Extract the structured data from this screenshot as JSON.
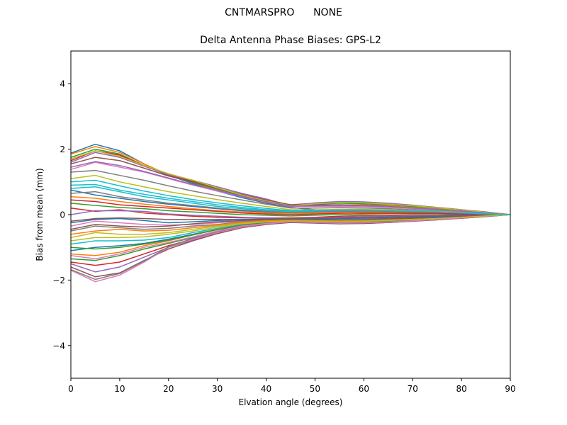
{
  "figure": {
    "suptitle": "CNTMARSPRO      NONE"
  },
  "chart_data": {
    "type": "line",
    "title": "Delta Antenna Phase Biases: GPS-L2",
    "xlabel": "Elvation angle (degrees)",
    "ylabel": "Bias from mean (mm)",
    "xlim": [
      0,
      90
    ],
    "ylim": [
      -5,
      5
    ],
    "xticks": [
      0,
      10,
      20,
      30,
      40,
      50,
      60,
      70,
      80,
      90
    ],
    "xtick_labels": [
      "0",
      "10",
      "20",
      "30",
      "40",
      "50",
      "60",
      "70",
      "80",
      "90"
    ],
    "yticks": [
      -4,
      -2,
      0,
      2,
      4
    ],
    "ytick_labels": [
      "−4",
      "−2",
      "0",
      "2",
      "4"
    ],
    "grid": false,
    "legend": "none",
    "colors": [
      "#1f77b4",
      "#ff7f0e",
      "#2ca02c",
      "#d62728",
      "#9467bd",
      "#8c564b",
      "#e377c2",
      "#7f7f7f",
      "#bcbd22",
      "#17becf"
    ],
    "x": [
      0,
      5,
      10,
      15,
      20,
      25,
      30,
      35,
      40,
      45,
      50,
      55,
      60,
      65,
      70,
      75,
      80,
      85,
      90
    ],
    "series": [
      {
        "values": [
          1.88,
          2.15,
          1.95,
          1.55,
          1.2,
          0.95,
          0.72,
          0.52,
          0.35,
          0.22,
          0.15,
          0.12,
          0.1,
          0.09,
          0.07,
          0.05,
          0.04,
          0.02,
          0.0
        ]
      },
      {
        "values": [
          1.85,
          2.08,
          1.9,
          1.55,
          1.22,
          0.98,
          0.75,
          0.55,
          0.38,
          0.25,
          0.28,
          0.3,
          0.3,
          0.27,
          0.22,
          0.17,
          0.12,
          0.06,
          0.0
        ]
      },
      {
        "values": [
          1.75,
          2.0,
          1.85,
          1.5,
          1.2,
          0.98,
          0.78,
          0.58,
          0.42,
          0.28,
          0.32,
          0.35,
          0.33,
          0.3,
          0.25,
          0.2,
          0.14,
          0.07,
          0.0
        ]
      },
      {
        "values": [
          1.65,
          1.95,
          1.82,
          1.5,
          1.2,
          1.02,
          0.8,
          0.6,
          0.43,
          0.3,
          0.35,
          0.38,
          0.38,
          0.33,
          0.28,
          0.22,
          0.15,
          0.08,
          0.0
        ]
      },
      {
        "values": [
          1.6,
          1.9,
          1.75,
          1.48,
          1.22,
          1.05,
          0.85,
          0.65,
          0.48,
          0.27,
          0.36,
          0.4,
          0.39,
          0.35,
          0.29,
          0.22,
          0.15,
          0.08,
          0.0
        ]
      },
      {
        "values": [
          1.55,
          1.75,
          1.65,
          1.42,
          1.18,
          1.0,
          0.8,
          0.62,
          0.45,
          0.3,
          0.3,
          0.3,
          0.28,
          0.25,
          0.2,
          0.15,
          0.1,
          0.05,
          0.0
        ]
      },
      {
        "values": [
          1.38,
          1.6,
          1.45,
          1.3,
          1.1,
          0.9,
          0.72,
          0.55,
          0.4,
          0.25,
          0.25,
          0.25,
          0.24,
          0.22,
          0.18,
          0.14,
          0.1,
          0.05,
          0.0
        ]
      },
      {
        "values": [
          1.3,
          1.35,
          1.2,
          1.05,
          0.88,
          0.72,
          0.58,
          0.45,
          0.32,
          0.2,
          0.2,
          0.21,
          0.2,
          0.18,
          0.15,
          0.12,
          0.08,
          0.04,
          0.0
        ]
      },
      {
        "values": [
          1.1,
          1.2,
          1.0,
          0.85,
          0.7,
          0.58,
          0.46,
          0.35,
          0.25,
          0.15,
          0.15,
          0.16,
          0.16,
          0.15,
          0.12,
          0.1,
          0.07,
          0.04,
          0.0
        ]
      },
      {
        "values": [
          0.9,
          0.92,
          0.75,
          0.62,
          0.5,
          0.4,
          0.3,
          0.22,
          0.15,
          0.1,
          0.12,
          0.13,
          0.13,
          0.12,
          0.1,
          0.08,
          0.06,
          0.03,
          0.0
        ]
      },
      {
        "values": [
          0.75,
          0.6,
          0.5,
          0.4,
          0.32,
          0.25,
          0.18,
          0.12,
          0.08,
          0.05,
          0.08,
          0.1,
          0.1,
          0.1,
          0.08,
          0.07,
          0.05,
          0.03,
          0.0
        ]
      },
      {
        "values": [
          0.55,
          0.5,
          0.4,
          0.32,
          0.25,
          0.18,
          0.12,
          0.08,
          0.05,
          0.03,
          0.05,
          0.07,
          0.08,
          0.08,
          0.07,
          0.06,
          0.04,
          0.02,
          0.0
        ]
      },
      {
        "values": [
          0.35,
          0.28,
          0.22,
          0.18,
          0.12,
          0.08,
          0.04,
          0.0,
          -0.02,
          -0.04,
          -0.02,
          0.0,
          0.02,
          0.03,
          0.03,
          0.03,
          0.02,
          0.01,
          0.0
        ]
      },
      {
        "values": [
          0.2,
          0.1,
          0.15,
          0.05,
          0.0,
          -0.05,
          -0.08,
          -0.1,
          -0.1,
          -0.1,
          -0.08,
          -0.05,
          -0.03,
          -0.02,
          -0.01,
          -0.01,
          0.0,
          0.0,
          0.0
        ]
      },
      {
        "values": [
          0.0,
          0.12,
          0.12,
          0.1,
          0.02,
          -0.02,
          -0.05,
          -0.08,
          -0.1,
          -0.12,
          -0.1,
          -0.08,
          -0.06,
          -0.05,
          -0.04,
          -0.03,
          -0.02,
          -0.01,
          0.0
        ]
      },
      {
        "values": [
          -0.2,
          -0.12,
          -0.1,
          -0.12,
          -0.15,
          -0.15,
          -0.15,
          -0.15,
          -0.13,
          -0.12,
          -0.12,
          -0.1,
          -0.08,
          -0.07,
          -0.06,
          -0.05,
          -0.03,
          -0.02,
          0.0
        ]
      },
      {
        "values": [
          -0.35,
          -0.2,
          -0.25,
          -0.3,
          -0.32,
          -0.3,
          -0.25,
          -0.2,
          -0.17,
          -0.15,
          -0.15,
          -0.15,
          -0.14,
          -0.12,
          -0.1,
          -0.08,
          -0.06,
          -0.03,
          0.0
        ]
      },
      {
        "values": [
          -0.5,
          -0.35,
          -0.4,
          -0.45,
          -0.42,
          -0.35,
          -0.3,
          -0.22,
          -0.18,
          -0.16,
          -0.17,
          -0.18,
          -0.17,
          -0.15,
          -0.13,
          -0.1,
          -0.07,
          -0.04,
          0.0
        ]
      },
      {
        "values": [
          -0.7,
          -0.55,
          -0.6,
          -0.6,
          -0.55,
          -0.45,
          -0.35,
          -0.27,
          -0.22,
          -0.2,
          -0.2,
          -0.2,
          -0.2,
          -0.18,
          -0.15,
          -0.12,
          -0.08,
          -0.04,
          0.0
        ]
      },
      {
        "values": [
          -0.9,
          -0.8,
          -0.8,
          -0.78,
          -0.7,
          -0.55,
          -0.42,
          -0.3,
          -0.24,
          -0.2,
          -0.22,
          -0.24,
          -0.24,
          -0.22,
          -0.18,
          -0.14,
          -0.1,
          -0.05,
          0.0
        ]
      },
      {
        "values": [
          -1.1,
          -1.0,
          -0.95,
          -0.88,
          -0.75,
          -0.6,
          -0.45,
          -0.32,
          -0.25,
          -0.22,
          -0.25,
          -0.27,
          -0.26,
          -0.24,
          -0.2,
          -0.15,
          -0.1,
          -0.05,
          0.0
        ]
      },
      {
        "values": [
          -1.2,
          -1.25,
          -1.15,
          -0.95,
          -0.8,
          -0.62,
          -0.45,
          -0.33,
          -0.26,
          -0.2,
          -0.23,
          -0.25,
          -0.25,
          -0.22,
          -0.18,
          -0.15,
          -0.1,
          -0.05,
          0.0
        ]
      },
      {
        "values": [
          -1.35,
          -1.4,
          -1.25,
          -1.05,
          -0.88,
          -0.7,
          -0.5,
          -0.35,
          -0.27,
          -0.22,
          -0.24,
          -0.26,
          -0.26,
          -0.23,
          -0.19,
          -0.15,
          -0.1,
          -0.05,
          0.0
        ]
      },
      {
        "values": [
          -1.45,
          -1.55,
          -1.45,
          -1.2,
          -0.95,
          -0.75,
          -0.55,
          -0.38,
          -0.28,
          -0.22,
          -0.24,
          -0.26,
          -0.26,
          -0.23,
          -0.19,
          -0.15,
          -0.1,
          -0.05,
          0.0
        ]
      },
      {
        "values": [
          -1.5,
          -1.75,
          -1.6,
          -1.3,
          -1.0,
          -0.78,
          -0.58,
          -0.4,
          -0.3,
          -0.23,
          -0.25,
          -0.27,
          -0.27,
          -0.24,
          -0.2,
          -0.16,
          -0.11,
          -0.06,
          0.0
        ]
      },
      {
        "values": [
          -1.6,
          -1.9,
          -1.78,
          -1.4,
          -1.05,
          -0.8,
          -0.58,
          -0.4,
          -0.3,
          -0.24,
          -0.26,
          -0.28,
          -0.27,
          -0.24,
          -0.2,
          -0.16,
          -0.11,
          -0.06,
          0.0
        ]
      },
      {
        "values": [
          -1.7,
          -2.05,
          -1.85,
          -1.45,
          -1.0,
          -0.75,
          -0.55,
          -0.38,
          -0.28,
          -0.22,
          -0.24,
          -0.26,
          -0.25,
          -0.22,
          -0.18,
          -0.14,
          -0.1,
          -0.05,
          0.0
        ]
      },
      {
        "values": [
          -1.68,
          -1.98,
          -1.8,
          -1.42,
          -0.98,
          -0.72,
          -0.52,
          -0.36,
          -0.27,
          -0.21,
          -0.22,
          -0.24,
          -0.23,
          -0.2,
          -0.17,
          -0.13,
          -0.09,
          -0.05,
          0.0
        ]
      },
      {
        "values": [
          1.7,
          1.95,
          1.78,
          1.5,
          1.25,
          1.05,
          0.82,
          0.6,
          0.42,
          0.27,
          0.33,
          0.37,
          0.36,
          0.32,
          0.27,
          0.21,
          0.14,
          0.07,
          0.0
        ]
      },
      {
        "values": [
          0.8,
          0.85,
          0.7,
          0.55,
          0.45,
          0.35,
          0.25,
          0.18,
          0.12,
          0.08,
          0.1,
          0.12,
          0.12,
          0.11,
          0.09,
          0.07,
          0.05,
          0.03,
          0.0
        ]
      },
      {
        "values": [
          -0.25,
          -0.15,
          -0.12,
          -0.18,
          -0.25,
          -0.22,
          -0.18,
          -0.15,
          -0.14,
          -0.13,
          -0.13,
          -0.12,
          -0.11,
          -0.1,
          -0.08,
          -0.06,
          -0.04,
          -0.02,
          0.0
        ]
      },
      {
        "values": [
          -0.6,
          -0.5,
          -0.45,
          -0.5,
          -0.48,
          -0.4,
          -0.32,
          -0.24,
          -0.19,
          -0.17,
          -0.18,
          -0.19,
          -0.18,
          -0.16,
          -0.13,
          -0.1,
          -0.07,
          -0.04,
          0.0
        ]
      },
      {
        "values": [
          -1.0,
          -1.05,
          -1.0,
          -0.9,
          -0.78,
          -0.62,
          -0.46,
          -0.33,
          -0.25,
          -0.21,
          -0.23,
          -0.25,
          -0.24,
          -0.22,
          -0.18,
          -0.14,
          -0.1,
          -0.05,
          0.0
        ]
      },
      {
        "values": [
          0.45,
          0.4,
          0.3,
          0.25,
          0.2,
          0.15,
          0.1,
          0.05,
          0.02,
          0.0,
          0.02,
          0.04,
          0.05,
          0.05,
          0.05,
          0.04,
          0.03,
          0.02,
          0.0
        ]
      },
      {
        "values": [
          1.45,
          1.62,
          1.5,
          1.32,
          1.12,
          0.92,
          0.74,
          0.56,
          0.4,
          0.26,
          0.27,
          0.28,
          0.27,
          0.24,
          0.2,
          0.16,
          0.11,
          0.05,
          0.0
        ]
      },
      {
        "values": [
          -0.45,
          -0.3,
          -0.35,
          -0.38,
          -0.35,
          -0.28,
          -0.22,
          -0.18,
          -0.15,
          -0.14,
          -0.15,
          -0.16,
          -0.15,
          -0.13,
          -0.11,
          -0.09,
          -0.06,
          -0.03,
          0.0
        ]
      },
      {
        "values": [
          -1.25,
          -1.35,
          -1.2,
          -1.0,
          -0.85,
          -0.68,
          -0.5,
          -0.35,
          -0.27,
          -0.22,
          -0.24,
          -0.26,
          -0.25,
          -0.23,
          -0.19,
          -0.15,
          -0.1,
          -0.05,
          0.0
        ]
      },
      {
        "values": [
          0.65,
          0.7,
          0.55,
          0.45,
          0.35,
          0.28,
          0.2,
          0.14,
          0.1,
          0.06,
          0.08,
          0.1,
          0.11,
          0.1,
          0.09,
          0.07,
          0.05,
          0.02,
          0.0
        ]
      },
      {
        "values": [
          -0.8,
          -0.7,
          -0.7,
          -0.68,
          -0.6,
          -0.5,
          -0.38,
          -0.28,
          -0.22,
          -0.19,
          -0.2,
          -0.21,
          -0.2,
          -0.18,
          -0.15,
          -0.12,
          -0.08,
          -0.04,
          0.0
        ]
      },
      {
        "values": [
          1.0,
          1.05,
          0.88,
          0.72,
          0.58,
          0.46,
          0.36,
          0.27,
          0.19,
          0.12,
          0.13,
          0.14,
          0.14,
          0.13,
          0.11,
          0.09,
          0.06,
          0.03,
          0.0
        ]
      }
    ]
  }
}
